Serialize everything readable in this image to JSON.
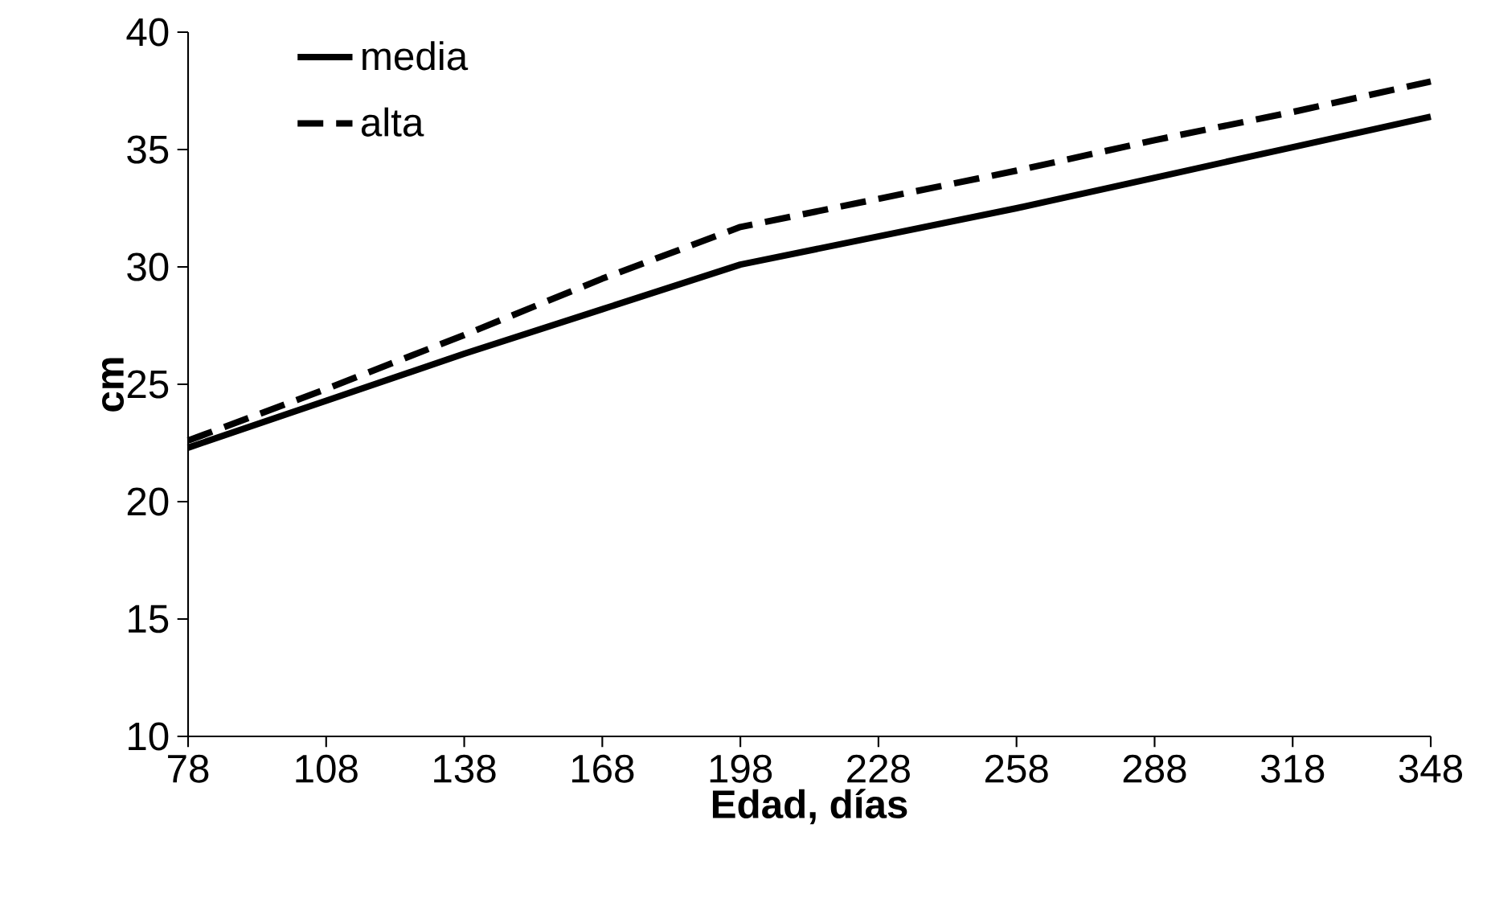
{
  "chart_data": {
    "type": "line",
    "xlabel": "Edad, días",
    "ylabel": "cm",
    "x": [
      78,
      108,
      138,
      168,
      198,
      228,
      258,
      288,
      318,
      348
    ],
    "series": [
      {
        "name": "media",
        "color": "#000000",
        "line_style": "solid",
        "values": [
          22.3,
          24.3,
          26.3,
          28.2,
          30.1,
          31.3,
          32.5,
          33.8,
          35.1,
          36.4
        ]
      },
      {
        "name": "alta",
        "color": "#000000",
        "line_style": "dashed",
        "values": [
          22.6,
          24.8,
          27.1,
          29.5,
          31.7,
          32.9,
          34.1,
          35.4,
          36.6,
          37.9
        ]
      }
    ],
    "xlim": [
      78,
      348
    ],
    "ylim": [
      10,
      40
    ],
    "xticks": [
      78,
      108,
      138,
      168,
      198,
      228,
      258,
      288,
      318,
      348
    ],
    "yticks": [
      10,
      15,
      20,
      25,
      30,
      35,
      40
    ],
    "legend": "top left",
    "grid": false,
    "marker": "none"
  }
}
